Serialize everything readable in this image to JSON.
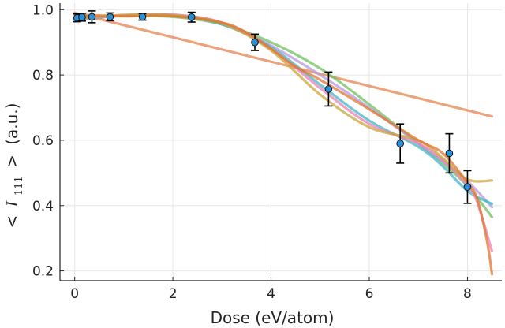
{
  "chart_data": {
    "type": "scatter",
    "xlabel": "Dose (eV/atom)",
    "ylabel": {
      "prefix": "<",
      "symbol": "I",
      "subscript": "111",
      "suffix": ">",
      "unit": "(a.u.)"
    },
    "xlim": [
      -0.3,
      8.7
    ],
    "ylim": [
      0.17,
      1.02
    ],
    "x_ticks": [
      0,
      2,
      4,
      6,
      8
    ],
    "y_ticks": [
      0.2,
      0.4,
      0.6,
      0.8,
      1.0
    ],
    "x_tick_labels": [
      "0",
      "2",
      "4",
      "6",
      "8"
    ],
    "y_tick_labels": [
      "0.2",
      "0.4",
      "0.6",
      "0.8",
      "1.0"
    ],
    "grid": true,
    "legend": "none",
    "measurements": {
      "x": [
        0.05,
        0.15,
        0.35,
        0.72,
        1.38,
        2.38,
        3.67,
        5.17,
        6.63,
        7.63,
        8.0
      ],
      "y": [
        0.975,
        0.977,
        0.978,
        0.978,
        0.978,
        0.977,
        0.9,
        0.757,
        0.59,
        0.56,
        0.457
      ],
      "err": [
        0.012,
        0.012,
        0.018,
        0.012,
        0.01,
        0.015,
        0.025,
        0.052,
        0.06,
        0.06,
        0.05
      ],
      "color": "#2a8fd6"
    },
    "series": [
      {
        "color": "#e6834f",
        "x": [
          0,
          8.5
        ],
        "y": [
          0.99,
          0.673
        ]
      },
      {
        "color": "#6fc05a",
        "x": [
          0,
          1,
          2,
          3,
          4,
          5,
          6,
          7,
          7.5,
          8,
          8.5
        ],
        "y": [
          0.975,
          0.98,
          0.978,
          0.955,
          0.9,
          0.82,
          0.71,
          0.59,
          0.53,
          0.46,
          0.365
        ]
      },
      {
        "color": "#b59ae0",
        "x": [
          0,
          1,
          2,
          3,
          4,
          5,
          6,
          7,
          7.5,
          8,
          8.5
        ],
        "y": [
          0.972,
          0.982,
          0.985,
          0.96,
          0.89,
          0.8,
          0.7,
          0.59,
          0.535,
          0.475,
          0.395
        ]
      },
      {
        "color": "#3fb6c4",
        "x": [
          0,
          1,
          2,
          3,
          4,
          5,
          6,
          7,
          7.5,
          8,
          8.5
        ],
        "y": [
          0.968,
          0.982,
          0.982,
          0.955,
          0.885,
          0.77,
          0.66,
          0.58,
          0.52,
          0.445,
          0.405
        ]
      },
      {
        "color": "#ee7fb5",
        "x": [
          0,
          1,
          2,
          3,
          4,
          5,
          6,
          7,
          7.5,
          8,
          8.2,
          8.5
        ],
        "y": [
          0.97,
          0.982,
          0.984,
          0.96,
          0.88,
          0.76,
          0.65,
          0.59,
          0.54,
          0.46,
          0.41,
          0.26
        ]
      },
      {
        "color": "#c9a53b",
        "x": [
          0,
          1,
          2,
          3,
          4,
          5,
          6,
          7,
          7.5,
          8,
          8.5
        ],
        "y": [
          0.972,
          0.984,
          0.983,
          0.958,
          0.875,
          0.74,
          0.64,
          0.6,
          0.545,
          0.48,
          0.477
        ]
      },
      {
        "color": "#e2762f",
        "x": [
          0,
          1,
          2,
          3,
          3.5,
          4,
          4.5,
          5,
          6,
          7,
          7.5,
          8,
          8.2,
          8.4,
          8.5
        ],
        "y": [
          0.985,
          0.98,
          0.98,
          0.96,
          0.93,
          0.88,
          0.825,
          0.785,
          0.695,
          0.6,
          0.56,
          0.47,
          0.42,
          0.29,
          0.19
        ]
      }
    ]
  }
}
